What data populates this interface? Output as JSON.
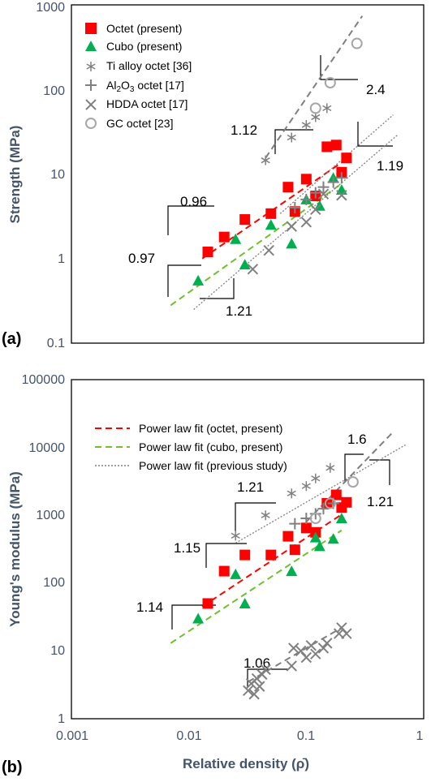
{
  "chart_data": [
    {
      "type": "scatter",
      "panel_label": "(a)",
      "ylabel": "Strength (MPa)",
      "xlabel": "",
      "x_scale": "log",
      "y_scale": "log",
      "xlim": [
        0.001,
        1
      ],
      "ylim": [
        0.1,
        1000
      ],
      "y_ticks": [
        "0.1",
        "1",
        "10",
        "100",
        "1000"
      ],
      "legend_position": "top-left",
      "series": [
        {
          "name": "Octet (present)",
          "marker": "square",
          "color": "#ff0000",
          "x": [
            0.0145,
            0.02,
            0.03,
            0.05,
            0.07,
            0.08,
            0.1,
            0.12,
            0.15,
            0.18,
            0.2,
            0.22
          ],
          "y": [
            1.2,
            1.8,
            2.9,
            3.4,
            7.0,
            3.6,
            8.7,
            5.5,
            21,
            22,
            10.5,
            15.5
          ]
        },
        {
          "name": "Cubo (present)",
          "marker": "triangle",
          "color": "#00b050",
          "x": [
            0.012,
            0.025,
            0.03,
            0.05,
            0.075,
            0.1,
            0.13,
            0.17,
            0.2
          ],
          "y": [
            0.55,
            1.7,
            0.85,
            2.5,
            1.5,
            5.0,
            4.2,
            9.0,
            6.5
          ]
        },
        {
          "name": "Ti alloy octet [36]",
          "marker": "asterisk",
          "color": "#808080",
          "x": [
            0.045,
            0.075,
            0.1,
            0.12,
            0.15
          ],
          "y": [
            14.5,
            27,
            38,
            47,
            60
          ]
        },
        {
          "name": "Al2O3 octet [17]",
          "marker": "plus",
          "color": "#808080",
          "x": [
            0.08,
            0.1,
            0.12,
            0.14,
            0.17,
            0.2
          ],
          "y": [
            4.0,
            5.0,
            6.0,
            7.0,
            8.0,
            9.0
          ]
        },
        {
          "name": "HDDA octet [17]",
          "marker": "x",
          "color": "#808080",
          "x": [
            0.035,
            0.048,
            0.075,
            0.1,
            0.12,
            0.14,
            0.2
          ],
          "y": [
            0.75,
            1.25,
            2.4,
            2.7,
            3.8,
            5.8,
            5.6
          ]
        },
        {
          "name": "GC octet [23]",
          "marker": "circle",
          "color": "#a6a6a6",
          "x": [
            0.12,
            0.16,
            0.27
          ],
          "y": [
            60,
            120,
            350
          ]
        }
      ],
      "fit_lines": [
        {
          "color": "#ff0000",
          "dash": "long",
          "x": [
            0.013,
            0.2
          ],
          "y": [
            1.0,
            13.7
          ]
        },
        {
          "color": "#70c030",
          "dash": "long",
          "x": [
            0.007,
            0.2
          ],
          "y": [
            0.28,
            7.7
          ]
        },
        {
          "color": "#7f7f7f",
          "dash": "dot",
          "x": [
            0.011,
            0.6
          ],
          "y": [
            0.25,
            29
          ]
        },
        {
          "color": "#7f7f7f",
          "dash": "long",
          "x": [
            0.045,
            0.3
          ],
          "y": [
            15.5,
            740
          ]
        },
        {
          "color": "#7f7f7f",
          "dash": "dot",
          "x": [
            0.06,
            0.55
          ],
          "y": [
            3.4,
            50
          ]
        }
      ],
      "slope_labels": [
        "0.96",
        "0.97",
        "1.21",
        "1.12",
        "2.4",
        "1.19"
      ]
    },
    {
      "type": "scatter",
      "panel_label": "(b)",
      "ylabel": "Young's modulus (MPa)",
      "xlabel": "Relative density  (ρ̄)",
      "x_scale": "log",
      "y_scale": "log",
      "xlim": [
        0.001,
        1
      ],
      "ylim": [
        1,
        100000
      ],
      "x_ticks": [
        "0.001",
        "0.01",
        "0.1",
        "1"
      ],
      "y_ticks": [
        "1",
        "10",
        "100",
        "1000",
        "10000",
        "100000"
      ],
      "legend_position": "top-left",
      "legend": [
        {
          "label": "Power law fit (octet, present)",
          "color": "#ff0000",
          "dash": "long"
        },
        {
          "label": "Power law fit (cubo, present)",
          "color": "#70c030",
          "dash": "long"
        },
        {
          "label": "Power law fit (previous study)",
          "color": "#7f7f7f",
          "dash": "dot"
        }
      ],
      "series": [
        {
          "name": "Octet (present)",
          "marker": "square",
          "color": "#ff0000",
          "x": [
            0.0145,
            0.02,
            0.03,
            0.05,
            0.07,
            0.08,
            0.1,
            0.12,
            0.15,
            0.18,
            0.2,
            0.22
          ],
          "y": [
            50,
            150,
            260,
            260,
            490,
            310,
            650,
            560,
            1500,
            2000,
            1300,
            1550
          ]
        },
        {
          "name": "Cubo (present)",
          "marker": "triangle",
          "color": "#00b050",
          "x": [
            0.012,
            0.025,
            0.03,
            0.075,
            0.12,
            0.13,
            0.17,
            0.2
          ],
          "y": [
            30,
            135,
            50,
            150,
            470,
            350,
            450,
            900
          ]
        },
        {
          "name": "Ti alloy octet [36]",
          "marker": "asterisk",
          "color": "#808080",
          "x": [
            0.025,
            0.045,
            0.075,
            0.1,
            0.12,
            0.16
          ],
          "y": [
            500,
            1000,
            2100,
            2700,
            3500,
            5000
          ]
        },
        {
          "name": "Al2O3 octet [17]",
          "marker": "plus",
          "color": "#808080",
          "x": [
            0.08,
            0.1,
            0.12,
            0.14,
            0.17
          ],
          "y": [
            750,
            900,
            1050,
            1250,
            1500
          ]
        },
        {
          "name": "HDDA octet [17]",
          "marker": "x",
          "color": "#808080",
          "x": [
            0.032,
            0.034,
            0.036,
            0.038,
            0.04,
            0.042,
            0.045,
            0.075,
            0.078,
            0.09,
            0.1,
            0.11,
            0.12,
            0.14,
            0.15,
            0.19,
            0.2,
            0.22
          ],
          "y": [
            2.6,
            3.3,
            2.3,
            3.9,
            3.0,
            4.5,
            5.3,
            6.0,
            11,
            10,
            8,
            12,
            9,
            11,
            13,
            18,
            22,
            18
          ]
        },
        {
          "name": "GC octet [23]",
          "marker": "circle",
          "color": "#a6a6a6",
          "x": [
            0.12,
            0.16,
            0.25
          ],
          "y": [
            900,
            1500,
            3100
          ]
        }
      ],
      "fit_lines": [
        {
          "color": "#ff0000",
          "dash": "long",
          "x": [
            0.013,
            0.2
          ],
          "y": [
            45,
            1030
          ]
        },
        {
          "color": "#70c030",
          "dash": "long",
          "x": [
            0.007,
            0.2
          ],
          "y": [
            13,
            600
          ]
        },
        {
          "color": "#7f7f7f",
          "dash": "dot",
          "x": [
            0.025,
            0.7
          ],
          "y": [
            390,
            10900
          ]
        },
        {
          "color": "#7f7f7f",
          "dash": "long",
          "x": [
            0.1,
            0.55
          ],
          "y": [
            800,
            17000
          ]
        },
        {
          "color": "#7f7f7f",
          "dash": "long",
          "x": [
            0.032,
            0.2
          ],
          "y": [
            3.5,
            22
          ]
        }
      ],
      "slope_labels": [
        "1.21",
        "1.15",
        "1.14",
        "1.6",
        "1.21",
        "1.06"
      ]
    }
  ]
}
